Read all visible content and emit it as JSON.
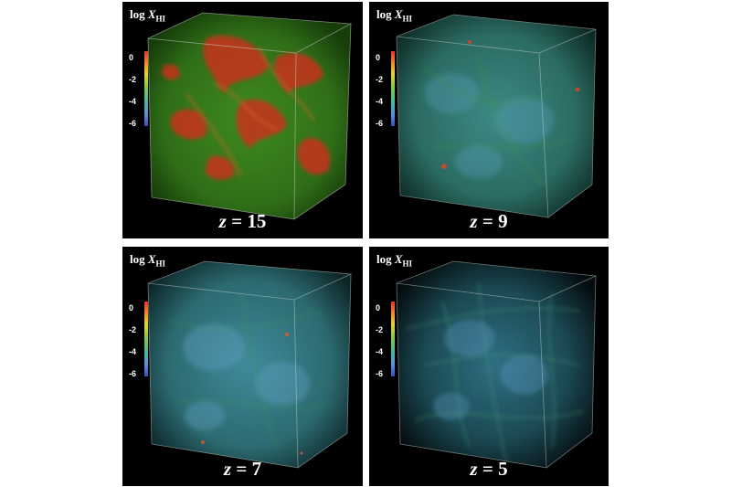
{
  "quantity_label": {
    "prefix": "log ",
    "symbol": "X",
    "subscript": "HI"
  },
  "colorbar_ticks": [
    "0",
    "-2",
    "-4",
    "-6"
  ],
  "panels": [
    {
      "redshift_symbol": "z",
      "redshift_text": " = 15",
      "core": "#3f8a1e",
      "mid": "#2f6e18",
      "edge": "#173d0a"
    },
    {
      "redshift_symbol": "z",
      "redshift_text": " = 9",
      "core": "#3d8a86",
      "mid": "#2b6b62",
      "edge": "#0d2b26"
    },
    {
      "redshift_symbol": "z",
      "redshift_text": " = 7",
      "core": "#3f8a9a",
      "mid": "#2c6a70",
      "edge": "#0c2628"
    },
    {
      "redshift_symbol": "z",
      "redshift_text": " = 5",
      "core": "#2f6f82",
      "mid": "#1b4a54",
      "edge": "#050d10"
    }
  ]
}
